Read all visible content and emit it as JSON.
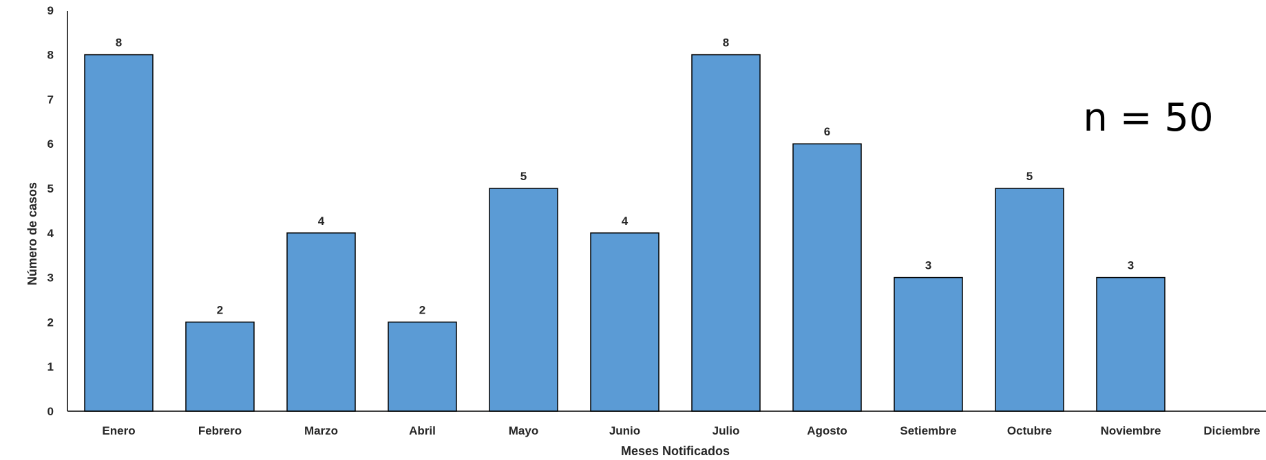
{
  "chart_data": {
    "type": "bar",
    "title": "",
    "xlabel": "Meses Notificados",
    "ylabel": "Número de casos",
    "categories": [
      "Enero",
      "Febrero",
      "Marzo",
      "Abril",
      "Mayo",
      "Junio",
      "Julio",
      "Agosto",
      "Setiembre",
      "Octubre",
      "Noviembre",
      "Diciembre"
    ],
    "values": [
      8,
      2,
      4,
      2,
      5,
      4,
      8,
      6,
      3,
      5,
      3,
      null
    ],
    "data_labels": [
      "8",
      "2",
      "4",
      "2",
      "5",
      "4",
      "8",
      "6",
      "3",
      "5",
      "3",
      ""
    ],
    "ylim": [
      0,
      9
    ],
    "yticks": [
      "0",
      "1",
      "2",
      "3",
      "4",
      "5",
      "6",
      "7",
      "8",
      "9"
    ],
    "grid": false,
    "legend": "none",
    "annotation": "n = 50",
    "bar_color": "#5B9BD5",
    "bar_edge_color": "#000000"
  }
}
